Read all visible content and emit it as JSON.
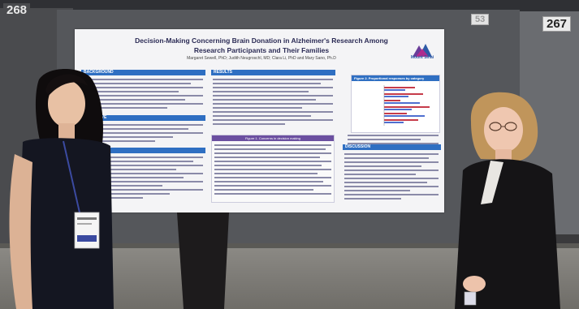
{
  "booth_labels": {
    "left": "268",
    "right": "267",
    "middle": "53"
  },
  "poster": {
    "title": "Decision-Making Concerning Brain Donation in Alzheimer's Research Among Research Participants and Their Families",
    "authors": "Margaret Sewell, PhD; Judith Neugroschl, MD; Clara Li, PhD and Mary Sano, Ph.D",
    "logo_text": "Mount Sinai",
    "sections": {
      "background": "BACKGROUND",
      "objective": "OBJECTIVE",
      "methods": "METHODS",
      "results": "RESULTS",
      "discussion": "DISCUSSION"
    },
    "figure_title": "Figure 2. Proportional responses by category",
    "table_title": "Figure 1. Concerns in decision making"
  },
  "colors": {
    "poster_header_blue": "#2f6fc2",
    "table_purple": "#6b4fa0",
    "logo_purple": "#6a3d9a",
    "logo_blue": "#2e5aa6"
  }
}
